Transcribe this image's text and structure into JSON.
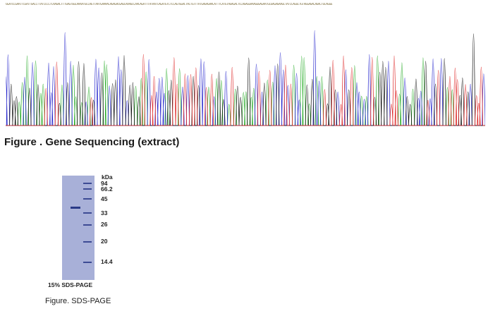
{
  "sequence_text": "GGATCCGAATTCGATTGACCTTATCCCCTCAAGACTTTGAGTGGCAAAATGCCAGTTAATGAAAACAGAGACGAGCAAAGCCAACAGATTTATAATCAGATGTCTCCAGTGGACTACTGTTTATGAGAGAACATTTCATGTAGAGACTCCAGAGGAAAGGGAGAATGCGAGAGAAGCTATCCAGGCTGTAGGAGACAGACTGCAGGG",
  "figure1_title": "Figure . Gene Sequencing (extract)",
  "gel": {
    "unit": "kDa",
    "markers": [
      "94",
      "66.2",
      "45",
      "33",
      "26",
      "20",
      "14.4"
    ],
    "caption": "15% SDS-PAGE"
  },
  "figure2_title": "Figure. SDS-PAGE",
  "colors": {
    "A": "#1fa81f",
    "C": "#2222cc",
    "G": "#111111",
    "T": "#dd2222",
    "gel": "#a8b0d8",
    "band": "#2a3a88"
  }
}
